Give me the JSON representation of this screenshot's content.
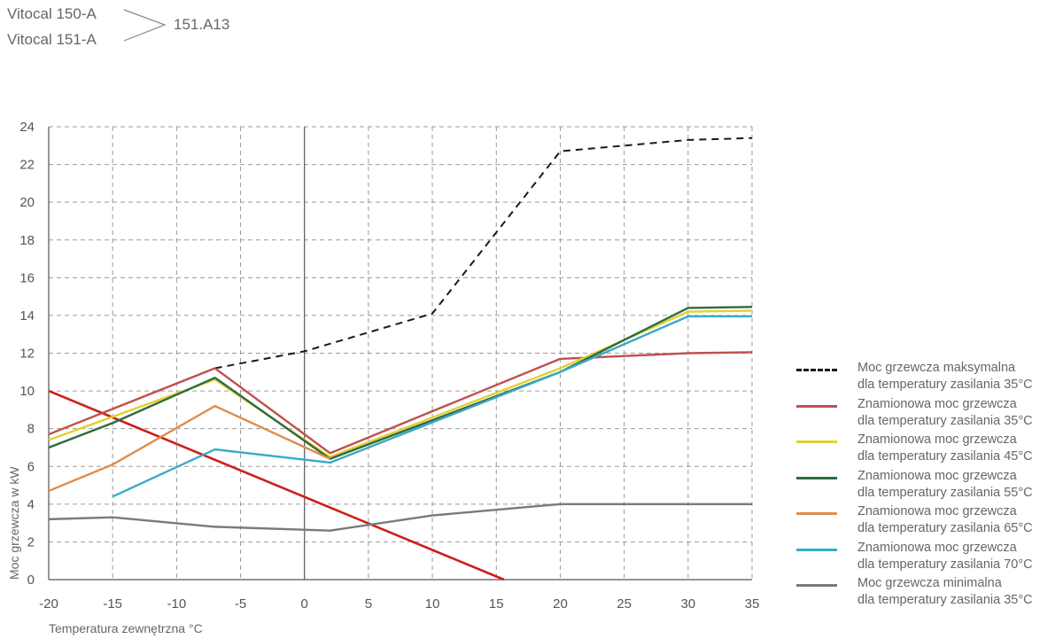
{
  "header": {
    "model_1": "Vitocal 150-A",
    "model_2": "Vitocal 151-A",
    "model_code": "151.A13"
  },
  "chart_data": {
    "type": "line",
    "xlabel": "Temperatura zewnętrzna °C",
    "ylabel": "Moc grzewcza w kW",
    "xlim": [
      -20,
      35
    ],
    "ylim": [
      0,
      24
    ],
    "xticks": [
      -20,
      -15,
      -10,
      -5,
      0,
      5,
      10,
      15,
      20,
      25,
      30,
      35
    ],
    "yticks": [
      0,
      2,
      4,
      6,
      8,
      10,
      12,
      14,
      16,
      18,
      20,
      22,
      24
    ],
    "grid": true,
    "legend_position": "right",
    "series": [
      {
        "name_line1": "Moc grzewcza maksymalna",
        "name_line2": "dla temperatury zasilania 35°C",
        "color": "#1a1a1a",
        "dashed": true,
        "points": [
          [
            -7,
            11.2
          ],
          [
            0,
            12.1
          ],
          [
            10,
            14.1
          ],
          [
            20,
            22.7
          ],
          [
            30,
            23.3
          ],
          [
            35,
            23.4
          ]
        ]
      },
      {
        "name_line1": "Znamionowa moc grzewcza",
        "name_line2": "dla temperatury zasilania 35°C",
        "color": "#c0504d",
        "dashed": false,
        "points": [
          [
            -20,
            7.7
          ],
          [
            -7,
            11.2
          ],
          [
            2,
            6.7
          ],
          [
            20,
            11.7
          ],
          [
            30,
            12.0
          ],
          [
            35,
            12.05
          ]
        ]
      },
      {
        "name_line1": "Znamionowa moc grzewcza",
        "name_line2": "dla temperatury zasilania 45°C",
        "color": "#e1d130",
        "dashed": false,
        "points": [
          [
            -20,
            7.4
          ],
          [
            -7,
            10.6
          ],
          [
            2,
            6.5
          ],
          [
            20,
            11.2
          ],
          [
            30,
            14.2
          ],
          [
            35,
            14.25
          ]
        ]
      },
      {
        "name_line1": "Znamionowa moc grzewcza",
        "name_line2": "dla temperatury zasilania 55°C",
        "color": "#2e6b3e",
        "dashed": false,
        "points": [
          [
            -20,
            7.0
          ],
          [
            -15,
            8.3
          ],
          [
            -7,
            10.7
          ],
          [
            2,
            6.4
          ],
          [
            20,
            11.0
          ],
          [
            30,
            14.4
          ],
          [
            35,
            14.45
          ]
        ]
      },
      {
        "name_line1": "Znamionowa moc grzewcza",
        "name_line2": "dla temperatury zasilania 65°C",
        "color": "#de8c4b",
        "dashed": false,
        "points": [
          [
            -20,
            4.7
          ],
          [
            -15,
            6.1
          ],
          [
            -7,
            9.2
          ],
          [
            2,
            6.4
          ]
        ]
      },
      {
        "name_line1": "Znamionowa moc grzewcza",
        "name_line2": "dla temperatury zasilania 70°C",
        "color": "#3aa9c9",
        "dashed": false,
        "points": [
          [
            -15,
            4.4
          ],
          [
            -7,
            6.9
          ],
          [
            2,
            6.2
          ],
          [
            20,
            11.0
          ],
          [
            30,
            13.95
          ],
          [
            35,
            13.95
          ]
        ]
      },
      {
        "name_line1": "Moc grzewcza minimalna",
        "name_line2": "dla temperatury zasilania 35°C",
        "color": "#7a7a7a",
        "dashed": false,
        "points": [
          [
            -20,
            3.2
          ],
          [
            -15,
            3.3
          ],
          [
            -7,
            2.8
          ],
          [
            2,
            2.6
          ],
          [
            10,
            3.4
          ],
          [
            20,
            4.0
          ],
          [
            35,
            4.0
          ]
        ]
      }
    ],
    "extra_lines": [
      {
        "description": "heating load line (unlabeled)",
        "color": "#cc1f1a",
        "points": [
          [
            -20,
            10.0
          ],
          [
            15.6,
            0.0
          ]
        ]
      }
    ]
  }
}
